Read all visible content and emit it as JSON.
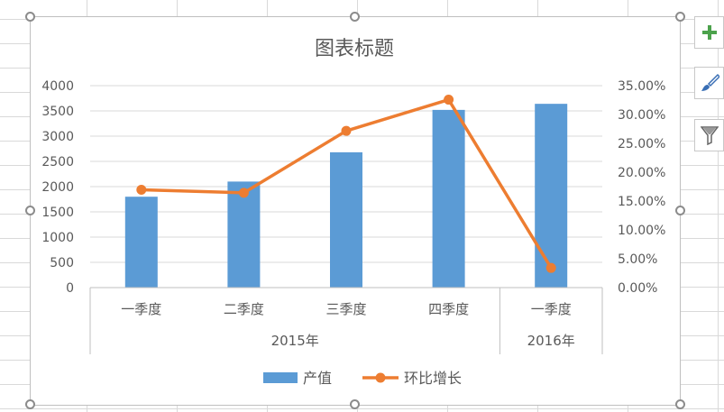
{
  "chart_data": {
    "type": "bar+line",
    "title": "图表标题",
    "categories": [
      "一季度",
      "二季度",
      "三季度",
      "四季度",
      "一季度"
    ],
    "groups": [
      {
        "label": "2015年",
        "count": 4
      },
      {
        "label": "2016年",
        "count": 1
      }
    ],
    "series": [
      {
        "name": "产值",
        "type": "bar",
        "axis": "left",
        "color": "#5B9BD5",
        "values": [
          1800,
          2100,
          2680,
          3520,
          3640
        ]
      },
      {
        "name": "环比增长",
        "type": "line",
        "axis": "right",
        "color": "#ED7D31",
        "values": [
          0.1695,
          0.1643,
          0.2716,
          0.3257,
          0.0341
        ]
      }
    ],
    "ylim_left": [
      0,
      4000
    ],
    "yticks_left": [
      "0",
      "500",
      "1000",
      "1500",
      "2000",
      "2500",
      "3000",
      "3500",
      "4000"
    ],
    "ylim_right": [
      0,
      0.35
    ],
    "yticks_right": [
      "0.00%",
      "5.00%",
      "10.00%",
      "15.00%",
      "20.00%",
      "25.00%",
      "30.00%",
      "35.00%"
    ],
    "grid": true,
    "legend_position": "bottom"
  },
  "side_buttons": {
    "add_icon": "plus-icon",
    "style_icon": "brush-icon",
    "filter_icon": "filter-icon",
    "add_color": "#4CA24C"
  }
}
